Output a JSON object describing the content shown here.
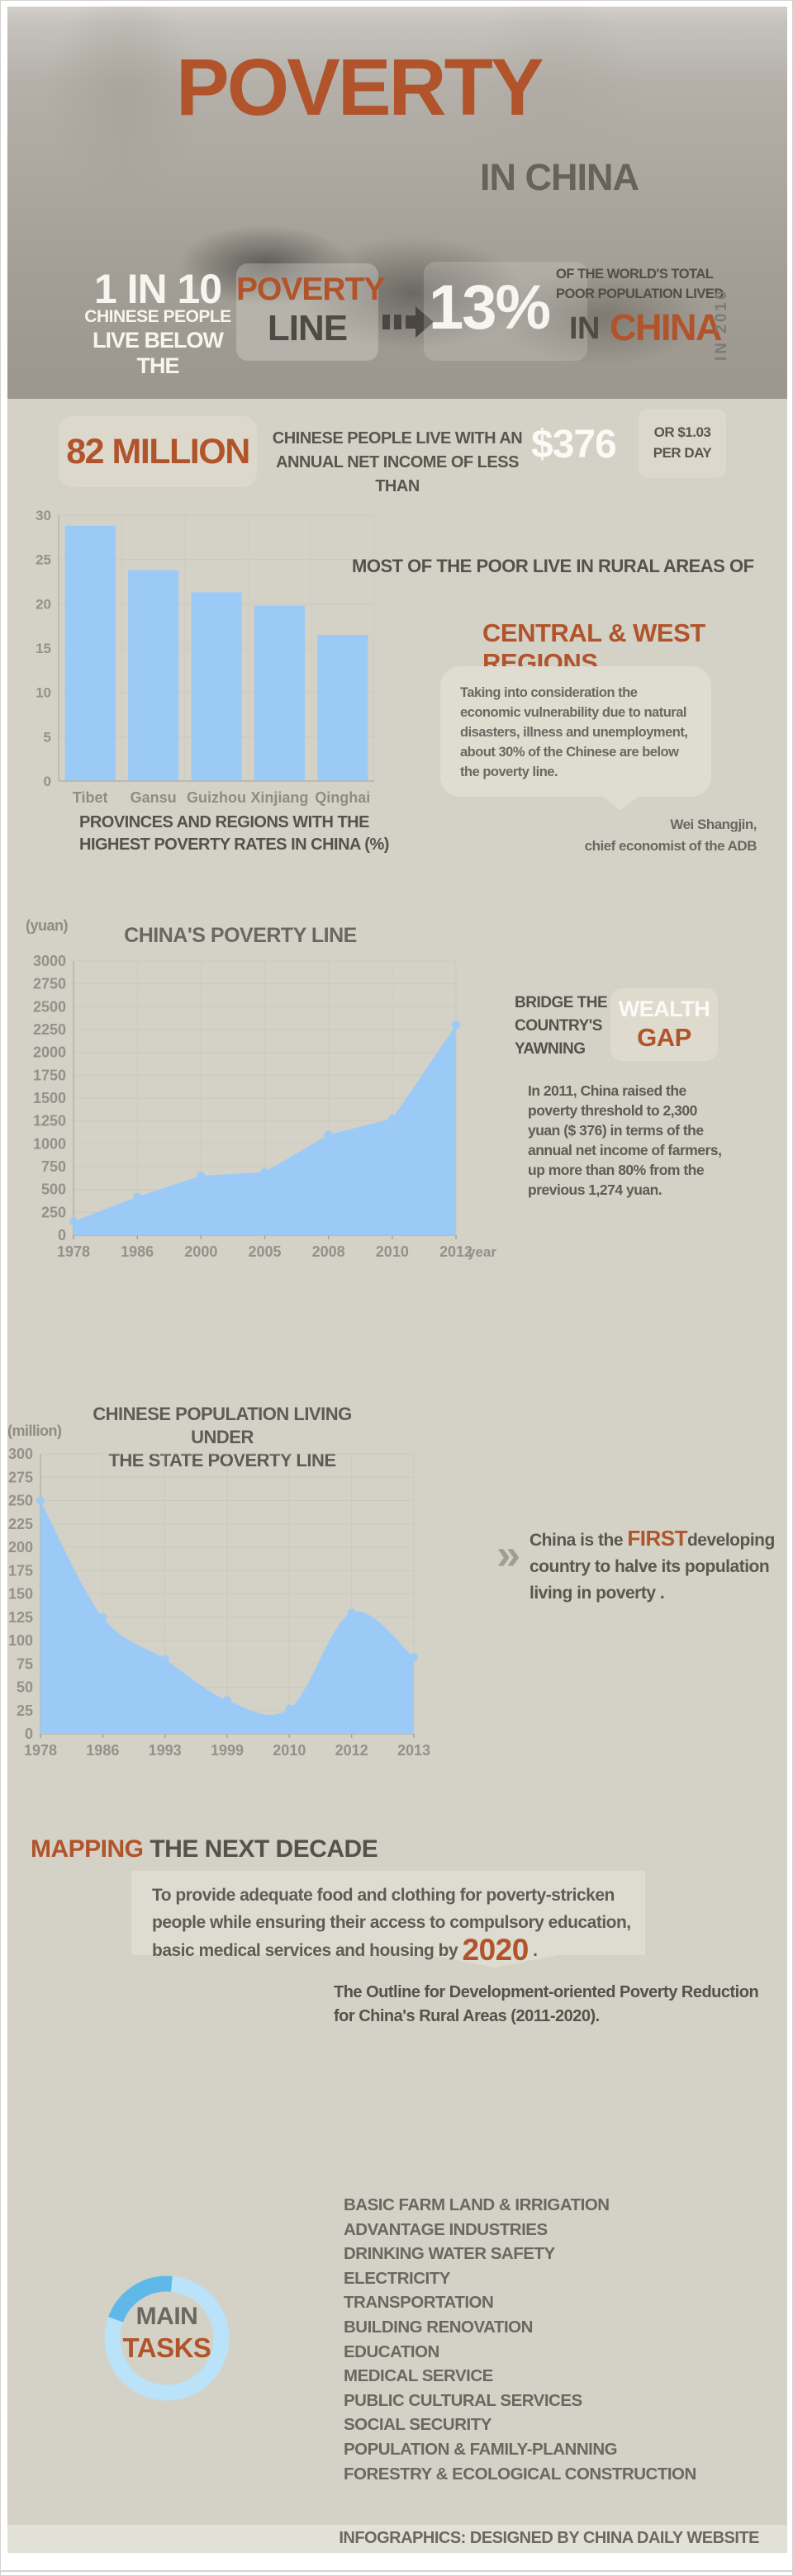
{
  "colors": {
    "accent_orange": "#b1542b",
    "chart_blue": "#9ccaf7",
    "donut_light": "#bae2f8",
    "donut_dark": "#5fb9e8",
    "beige_bg": "#d4d2c6"
  },
  "header": {
    "title": "POVERTY",
    "subtitle": "IN CHINA",
    "stat_big": "1 IN 10",
    "stat_mid": "CHINESE PEOPLE",
    "stat_small": "LIVE BELOW THE",
    "box_word1": "POVERTY",
    "box_word2": "LINE",
    "percent": "13%",
    "right_line1": "OF THE WORLD'S TOTAL",
    "right_line2": "POOR POPULATION LIVED",
    "right_in": "IN",
    "right_china": "CHINA",
    "vertical_year": "IN 2010"
  },
  "income": {
    "big": "82 MILLION",
    "desc1": "CHINESE PEOPLE LIVE WITH AN",
    "desc2": "ANNUAL NET INCOME OF LESS THAN",
    "amount": "$376",
    "alt1": "OR $1.03",
    "alt2": "PER DAY"
  },
  "rural": {
    "lead": "MOST OF THE POOR LIVE IN RURAL AREAS OF",
    "highlight": "CENTRAL & WEST REGIONS",
    "quote": "Taking into consideration the economic vulnerability due to natural disasters, illness and unemployment, about 30% of the Chinese are below the poverty line.",
    "attribution1": "Wei Shangjin,",
    "attribution2": "chief economist of the ADB"
  },
  "wealth": {
    "lead1": "BRIDGE THE",
    "lead2": "COUNTRY'S",
    "lead3": "YAWNING",
    "word1": "WEALTH",
    "word2": "GAP",
    "body": "In 2011, China raised the poverty threshold to 2,300 yuan ($ 376) in terms of the annual net income of farmers, up more than 80% from the previous 1,274 yuan."
  },
  "halve": {
    "chevron": "»",
    "prefix": "China is the ",
    "highlight": "FIRST",
    "suffix": "developing country to halve its population living in poverty ."
  },
  "mapping": {
    "title_hl": "MAPPING",
    "title_rest": " THE NEXT DECADE",
    "goal_prefix": "To provide adequate food and clothing for poverty-stricken people while ensuring their access to compulsory education, basic medical services and housing by ",
    "goal_year": "2020",
    "goal_suffix": " .",
    "outline1": "The Outline for Development-oriented Poverty Reduction",
    "outline2": "for China's Rural Areas (2011-2020)."
  },
  "tasks": {
    "word1": "MAIN",
    "word2": "TASKS",
    "items": [
      "BASIC FARM LAND & IRRIGATION",
      "ADVANTAGE INDUSTRIES",
      "DRINKING WATER SAFETY",
      "ELECTRICITY",
      "TRANSPORTATION",
      "BUILDING RENOVATION",
      "EDUCATION",
      "MEDICAL SERVICE",
      "PUBLIC CULTURAL SERVICES",
      "SOCIAL SECURITY",
      "POPULATION & FAMILY-PLANNING",
      "FORESTRY & ECOLOGICAL CONSTRUCTION"
    ]
  },
  "footer": {
    "credit": "INFOGRAPHICS: DESIGNED BY CHINA DAILY WEBSITE"
  },
  "chart_data": [
    {
      "type": "bar",
      "categories": [
        "Tibet",
        "Gansu",
        "Guizhou",
        "Xinjiang",
        "Qinghai"
      ],
      "values": [
        28.8,
        23.8,
        21.3,
        19.8,
        16.5
      ],
      "ylim": [
        0,
        30
      ],
      "ytick_step": 5,
      "caption_lines": [
        "PROVINCES AND REGIONS WITH THE",
        "HIGHEST POVERTY RATES IN CHINA (%)"
      ],
      "legend": "none",
      "grid": true
    },
    {
      "type": "area",
      "title": "CHINA'S POVERTY LINE",
      "title_lines": [
        "CHINA'S POVERTY LINE"
      ],
      "unit": "(yuan)",
      "xlabel": "year",
      "categories": [
        "1978",
        "1986",
        "2000",
        "2005",
        "2008",
        "2010",
        "2012"
      ],
      "values": [
        150,
        420,
        650,
        690,
        1100,
        1274,
        2300
      ],
      "ylim": [
        0,
        3000
      ],
      "ytick_step": 250,
      "smooth": false,
      "grid": true
    },
    {
      "type": "area",
      "title": "CHINESE POPULATION LIVING UNDER THE STATE POVERTY LINE",
      "title_lines": [
        "CHINESE POPULATION LIVING UNDER",
        "THE STATE POVERTY LINE"
      ],
      "unit": "(million)",
      "xlabel": "",
      "categories": [
        "1978",
        "1986",
        "1993",
        "1999",
        "2010",
        "2012",
        "2013"
      ],
      "values": [
        250,
        125,
        80,
        36,
        27,
        130,
        82
      ],
      "ylim": [
        0,
        300
      ],
      "ytick_step": 25,
      "smooth": true,
      "grid": true
    }
  ]
}
